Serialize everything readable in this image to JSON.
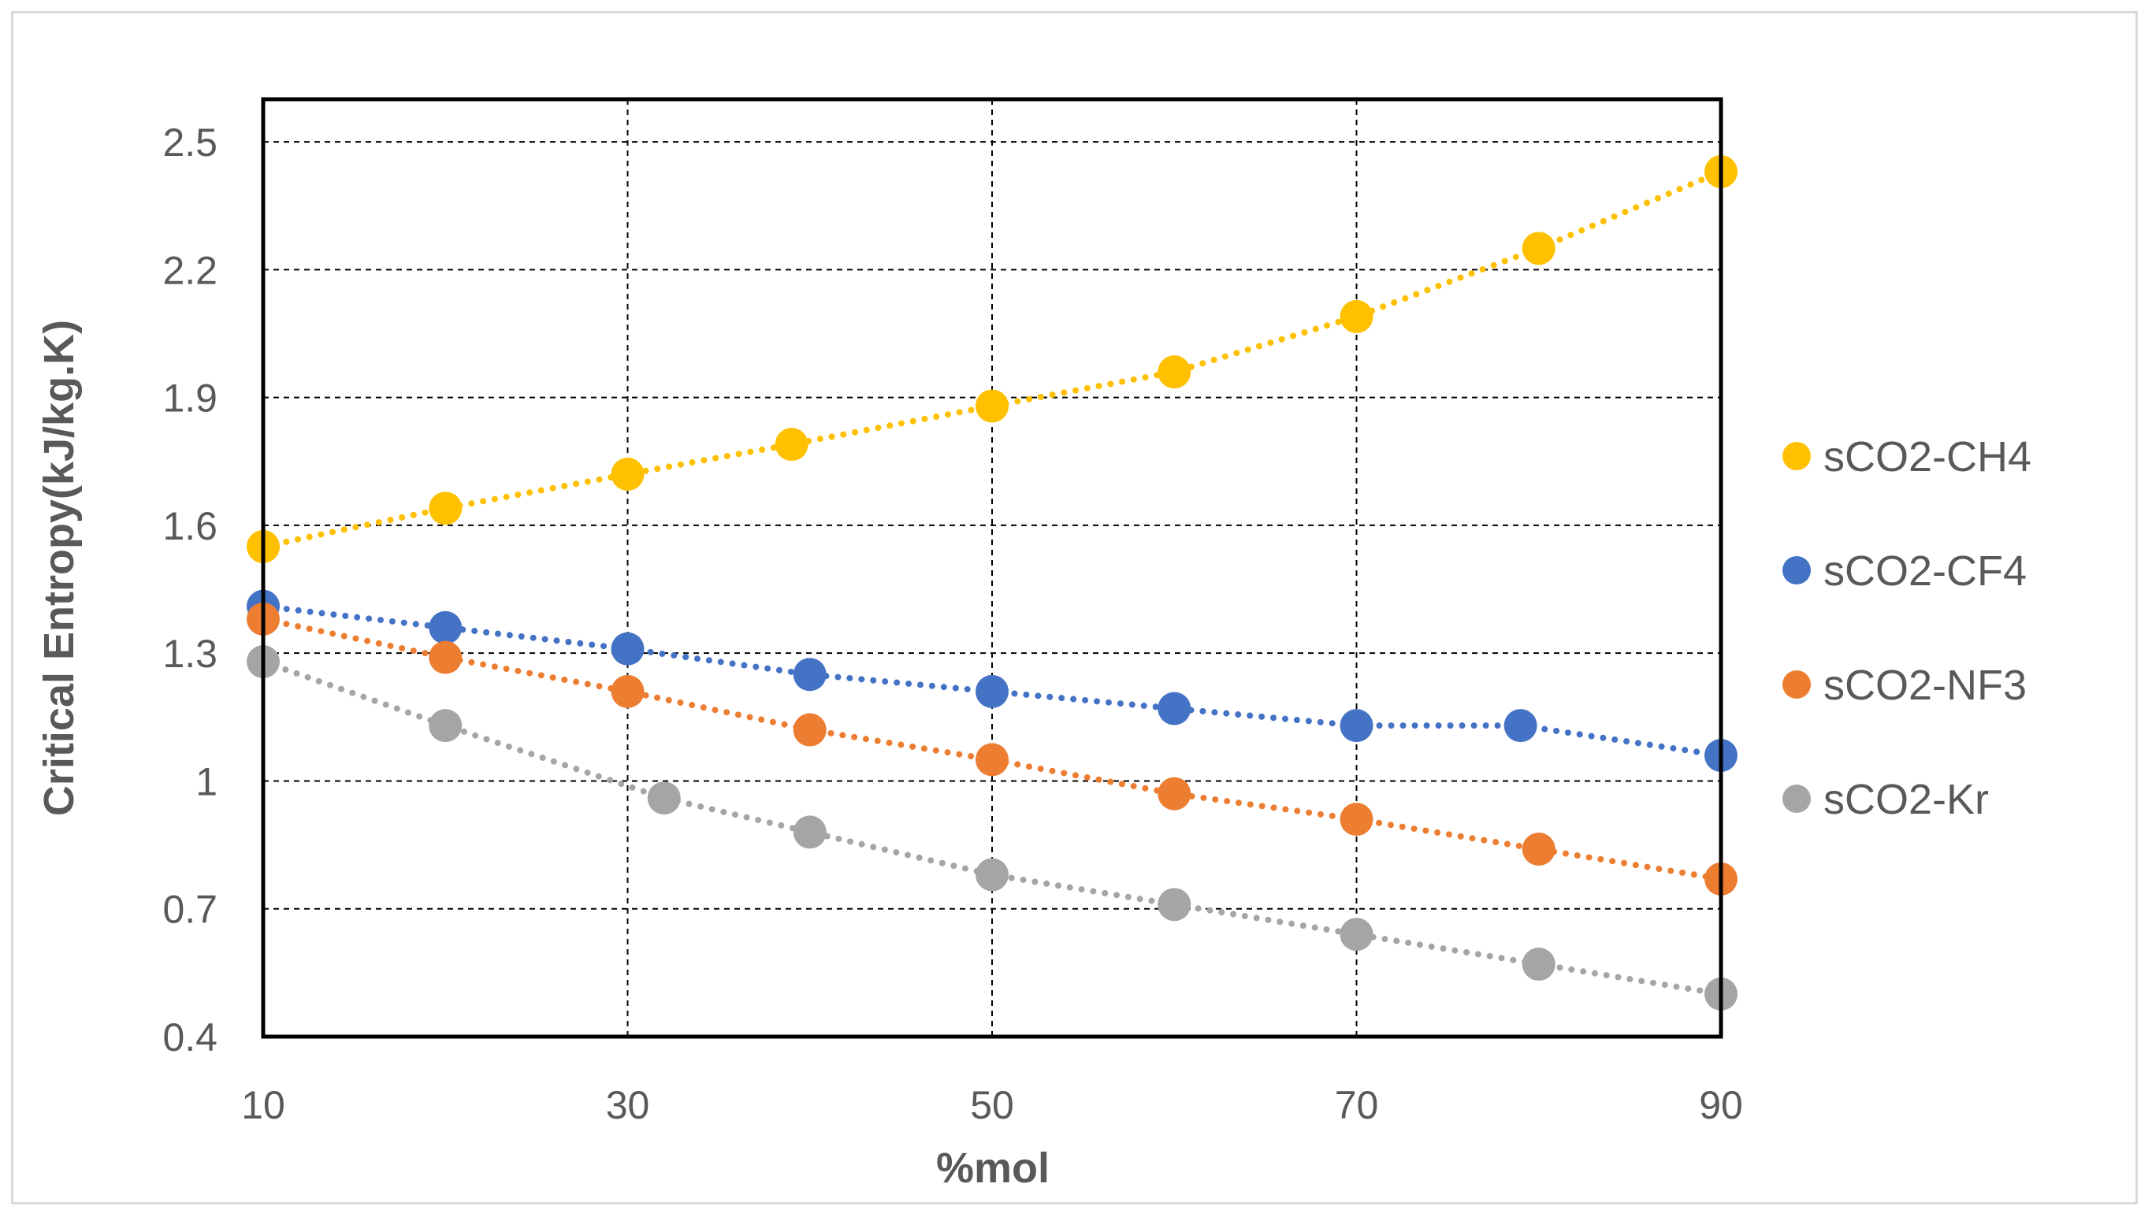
{
  "chart_data": {
    "type": "scatter",
    "title": "",
    "xlabel": "%mol",
    "ylabel": "Critical Entropy(kJ/kg.K)",
    "xlim": [
      10,
      90
    ],
    "ylim": [
      0.4,
      2.6
    ],
    "xticks": [
      10,
      30,
      50,
      70,
      90
    ],
    "yticks": [
      0.4,
      0.7,
      1,
      1.3,
      1.6,
      1.9,
      2.2,
      2.5
    ],
    "xtick_labels": [
      "10",
      "30",
      "50",
      "70",
      "90"
    ],
    "ytick_labels": [
      "0.4",
      "0.7",
      "1",
      "1.3",
      "1.6",
      "1.9",
      "2.2",
      "2.5"
    ],
    "grid": true,
    "legend_position": "right",
    "trendline": "dotted",
    "series": [
      {
        "name": "sCO2-CH4",
        "color": "#FFC000",
        "points": [
          [
            10,
            1.55
          ],
          [
            20,
            1.64
          ],
          [
            30,
            1.72
          ],
          [
            39,
            1.79
          ],
          [
            50,
            1.88
          ],
          [
            60,
            1.96
          ],
          [
            70,
            2.09
          ],
          [
            80,
            2.25
          ],
          [
            90,
            2.43
          ]
        ]
      },
      {
        "name": "sCO2-CF4",
        "color": "#4472C4",
        "points": [
          [
            10,
            1.41
          ],
          [
            20,
            1.36
          ],
          [
            30,
            1.31
          ],
          [
            40,
            1.25
          ],
          [
            50,
            1.21
          ],
          [
            60,
            1.17
          ],
          [
            70,
            1.13
          ],
          [
            79,
            1.13
          ],
          [
            90,
            1.06
          ]
        ]
      },
      {
        "name": "sCO2-NF3",
        "color": "#ED7D31",
        "points": [
          [
            10,
            1.38
          ],
          [
            20,
            1.29
          ],
          [
            30,
            1.21
          ],
          [
            40,
            1.12
          ],
          [
            50,
            1.05
          ],
          [
            60,
            0.97
          ],
          [
            70,
            0.91
          ],
          [
            80,
            0.84
          ],
          [
            90,
            0.77
          ]
        ]
      },
      {
        "name": "sCO2-Kr",
        "color": "#A5A5A5",
        "points": [
          [
            10,
            1.28
          ],
          [
            20,
            1.13
          ],
          [
            32,
            0.96
          ],
          [
            40,
            0.88
          ],
          [
            50,
            0.78
          ],
          [
            60,
            0.71
          ],
          [
            70,
            0.64
          ],
          [
            80,
            0.57
          ],
          [
            90,
            0.5
          ]
        ]
      }
    ]
  }
}
